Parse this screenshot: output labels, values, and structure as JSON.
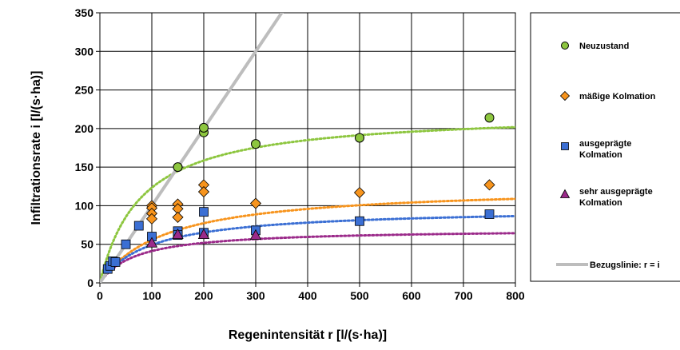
{
  "chart_data": {
    "type": "scatter",
    "xlabel": "Regenintensität r  [l/(s·ha)]",
    "ylabel": "Infiltrationsrate i  [l/(s·ha)]",
    "xlim": [
      0,
      800
    ],
    "ylim": [
      0,
      350
    ],
    "xticks": [
      0,
      100,
      200,
      300,
      400,
      500,
      600,
      700,
      800
    ],
    "yticks": [
      0,
      50,
      100,
      150,
      200,
      250,
      300,
      350
    ],
    "grid": true,
    "legend_position": "right",
    "series": [
      {
        "name": "Neuzustand",
        "marker": "circle",
        "color": "#8dc63f",
        "points": [
          [
            150,
            150
          ],
          [
            200,
            195
          ],
          [
            200,
            201
          ],
          [
            300,
            180
          ],
          [
            500,
            188
          ],
          [
            750,
            214
          ]
        ]
      },
      {
        "name": "mäßige Kolmation",
        "marker": "diamond",
        "color": "#f7941d",
        "points": [
          [
            100,
            100
          ],
          [
            100,
            97
          ],
          [
            100,
            90
          ],
          [
            100,
            83
          ],
          [
            150,
            102
          ],
          [
            150,
            96
          ],
          [
            150,
            85
          ],
          [
            200,
            127
          ],
          [
            200,
            118
          ],
          [
            300,
            103
          ],
          [
            500,
            117
          ],
          [
            750,
            127
          ]
        ]
      },
      {
        "name": "ausgeprägte Kolmation",
        "marker": "square",
        "color": "#3b6fd4",
        "points": [
          [
            15,
            18
          ],
          [
            20,
            22
          ],
          [
            25,
            28
          ],
          [
            30,
            27
          ],
          [
            50,
            50
          ],
          [
            75,
            74
          ],
          [
            100,
            60
          ],
          [
            150,
            67
          ],
          [
            150,
            62
          ],
          [
            200,
            92
          ],
          [
            200,
            65
          ],
          [
            300,
            68
          ],
          [
            500,
            80
          ],
          [
            750,
            89
          ]
        ]
      },
      {
        "name": "sehr ausgeprägte Kolmation",
        "marker": "triangle",
        "color": "#9b2a8a",
        "points": [
          [
            100,
            52
          ],
          [
            150,
            63
          ],
          [
            200,
            63
          ],
          [
            300,
            62
          ]
        ]
      },
      {
        "name": "Bezugslinie:  r = i",
        "marker": "line",
        "color": "#bdbdbd",
        "points": [
          [
            0,
            0
          ],
          [
            360,
            360
          ]
        ]
      }
    ],
    "trendlines": [
      {
        "series": "Neuzustand",
        "color": "#8dc63f",
        "asymptote": 222,
        "k": 80
      },
      {
        "series": "mäßige Kolmation",
        "color": "#f7941d",
        "asymptote": 126,
        "k": 1
      },
      {
        "series": "ausgeprägte Kolmation",
        "color": "#3b6fd4",
        "asymptote": 97,
        "k": 1
      },
      {
        "series": "sehr ausgeprägte Kolmation",
        "color": "#9b2a8a",
        "asymptote": 70,
        "k": 1
      }
    ]
  },
  "legend": {
    "items": [
      {
        "lines": [
          "Neuzustand"
        ]
      },
      {
        "lines": [
          "mäßige Kolmation"
        ]
      },
      {
        "lines": [
          "ausgeprägte",
          "Kolmation"
        ]
      },
      {
        "lines": [
          "sehr ausgeprägte",
          "Kolmation"
        ]
      },
      {
        "lines": [
          "Bezugslinie:  r = i"
        ]
      }
    ]
  }
}
